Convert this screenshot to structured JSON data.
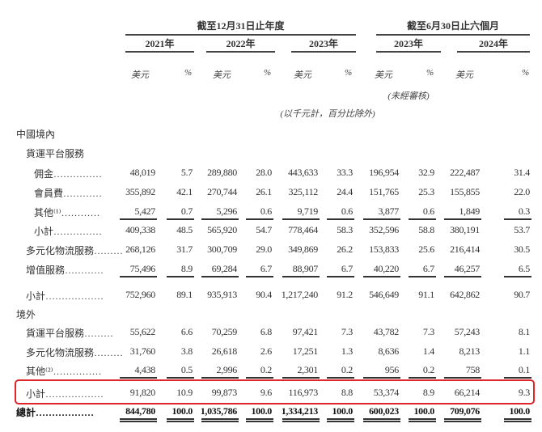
{
  "header": {
    "group_fy": "截至12月31日止年度",
    "group_6m": "截至6月30日止六個月",
    "years": [
      "2021年",
      "2022年",
      "2023年",
      "2023年",
      "2024年"
    ],
    "unit_amount": "美元",
    "unit_pct": "%",
    "unaudited": "(未經審核)",
    "note": "(以千元計，百分比除外)"
  },
  "rows": [
    {
      "label": "中國境內",
      "indent": 0,
      "values": []
    },
    {
      "label": "貨運平台服務",
      "indent": 1,
      "values": []
    },
    {
      "label": "佣金……………",
      "indent": 2,
      "values": [
        "48,019",
        "5.7",
        "289,880",
        "28.0",
        "443,633",
        "33.3",
        "196,954",
        "32.9",
        "222,487",
        "31.4"
      ]
    },
    {
      "label": "會員費…………",
      "indent": 2,
      "values": [
        "355,892",
        "42.1",
        "270,744",
        "26.1",
        "325,112",
        "24.4",
        "151,765",
        "25.3",
        "155,855",
        "22.0"
      ]
    },
    {
      "label": "其他⁽¹⁾…………",
      "indent": 2,
      "values": [
        "5,427",
        "0.7",
        "5,296",
        "0.6",
        "9,719",
        "0.6",
        "3,877",
        "0.6",
        "1,849",
        "0.3"
      ],
      "rule": "single"
    },
    {
      "label": "小計……………",
      "indent": 2,
      "values": [
        "409,338",
        "48.5",
        "565,920",
        "54.7",
        "778,464",
        "58.3",
        "352,596",
        "58.8",
        "380,191",
        "53.7"
      ]
    },
    {
      "label": "多元化物流服務………",
      "indent": 1,
      "values": [
        "268,126",
        "31.7",
        "300,709",
        "29.0",
        "349,869",
        "26.2",
        "153,833",
        "25.6",
        "216,414",
        "30.5"
      ]
    },
    {
      "label": "增值服務…………",
      "indent": 1,
      "values": [
        "75,496",
        "8.9",
        "69,284",
        "6.7",
        "88,907",
        "6.7",
        "40,220",
        "6.7",
        "46,257",
        "6.5"
      ],
      "rule": "single"
    },
    {
      "label": "小計………………",
      "indent": 1,
      "values": [
        "752,960",
        "89.1",
        "935,913",
        "90.4",
        "1,217,240",
        "91.2",
        "546,649",
        "91.1",
        "642,862",
        "90.7"
      ]
    },
    {
      "label": "境外",
      "indent": 0,
      "values": []
    },
    {
      "label": "貨運平台服務………",
      "indent": 1,
      "values": [
        "55,622",
        "6.6",
        "70,259",
        "6.8",
        "97,421",
        "7.3",
        "43,782",
        "7.3",
        "57,243",
        "8.1"
      ]
    },
    {
      "label": "多元化物流服務………",
      "indent": 1,
      "values": [
        "31,760",
        "3.8",
        "26,618",
        "2.6",
        "17,251",
        "1.3",
        "8,636",
        "1.4",
        "8,213",
        "1.1"
      ]
    },
    {
      "label": "其他⁽²⁾……………",
      "indent": 1,
      "values": [
        "4,438",
        "0.5",
        "2,996",
        "0.2",
        "2,301",
        "0.2",
        "956",
        "0.2",
        "758",
        "0.1"
      ],
      "rule": "single"
    },
    {
      "label": "小計………………",
      "indent": 1,
      "values": [
        "91,820",
        "10.9",
        "99,873",
        "9.6",
        "116,973",
        "8.8",
        "53,374",
        "8.9",
        "66,214",
        "9.3"
      ],
      "highlight": true
    },
    {
      "label": "總計………………",
      "indent": 0,
      "values": [
        "844,780",
        "100.0",
        "1,035,786",
        "100.0",
        "1,334,213",
        "100.0",
        "600,023",
        "100.0",
        "709,076",
        "100.0"
      ],
      "bold": true,
      "rule": "double"
    }
  ],
  "colors": {
    "highlight": "#e0262a"
  }
}
